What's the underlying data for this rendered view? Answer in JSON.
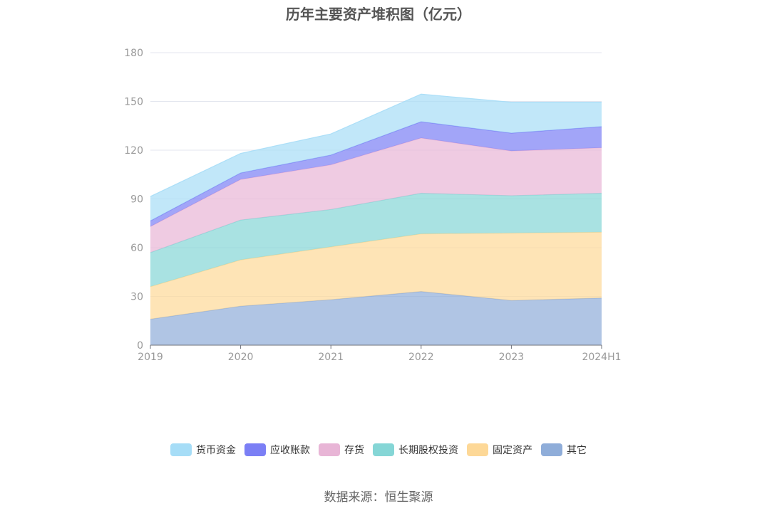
{
  "chart_data": {
    "type": "area",
    "stacked": true,
    "title": "历年主要资产堆积图（亿元）",
    "categories": [
      "2019",
      "2020",
      "2021",
      "2022",
      "2023",
      "2024H1"
    ],
    "yticks": [
      "0",
      "30",
      "60",
      "90",
      "120",
      "150",
      "180"
    ],
    "ylim": [
      0,
      180
    ],
    "grid": true,
    "legend_position": "bottom",
    "series": [
      {
        "name": "其它",
        "color": "#8fadd9",
        "values": [
          16,
          24,
          28,
          33,
          27.5,
          29
        ]
      },
      {
        "name": "固定资产",
        "color": "#fdd897",
        "values": [
          20,
          28.5,
          32.5,
          35.5,
          41.5,
          40.5
        ]
      },
      {
        "name": "长期股权投资",
        "color": "#85d6d6",
        "values": [
          21,
          24.5,
          23,
          25,
          23,
          24
        ]
      },
      {
        "name": "存货",
        "color": "#e8b5d6",
        "values": [
          16,
          25,
          27.5,
          34,
          27.5,
          28
        ]
      },
      {
        "name": "应收账款",
        "color": "#7b7ff5",
        "values": [
          3.5,
          4,
          6,
          10,
          11,
          13
        ]
      },
      {
        "name": "货币资金",
        "color": "#a6ddf7",
        "values": [
          15,
          12,
          13,
          17,
          19,
          15
        ]
      }
    ]
  },
  "source": "数据来源：恒生聚源"
}
